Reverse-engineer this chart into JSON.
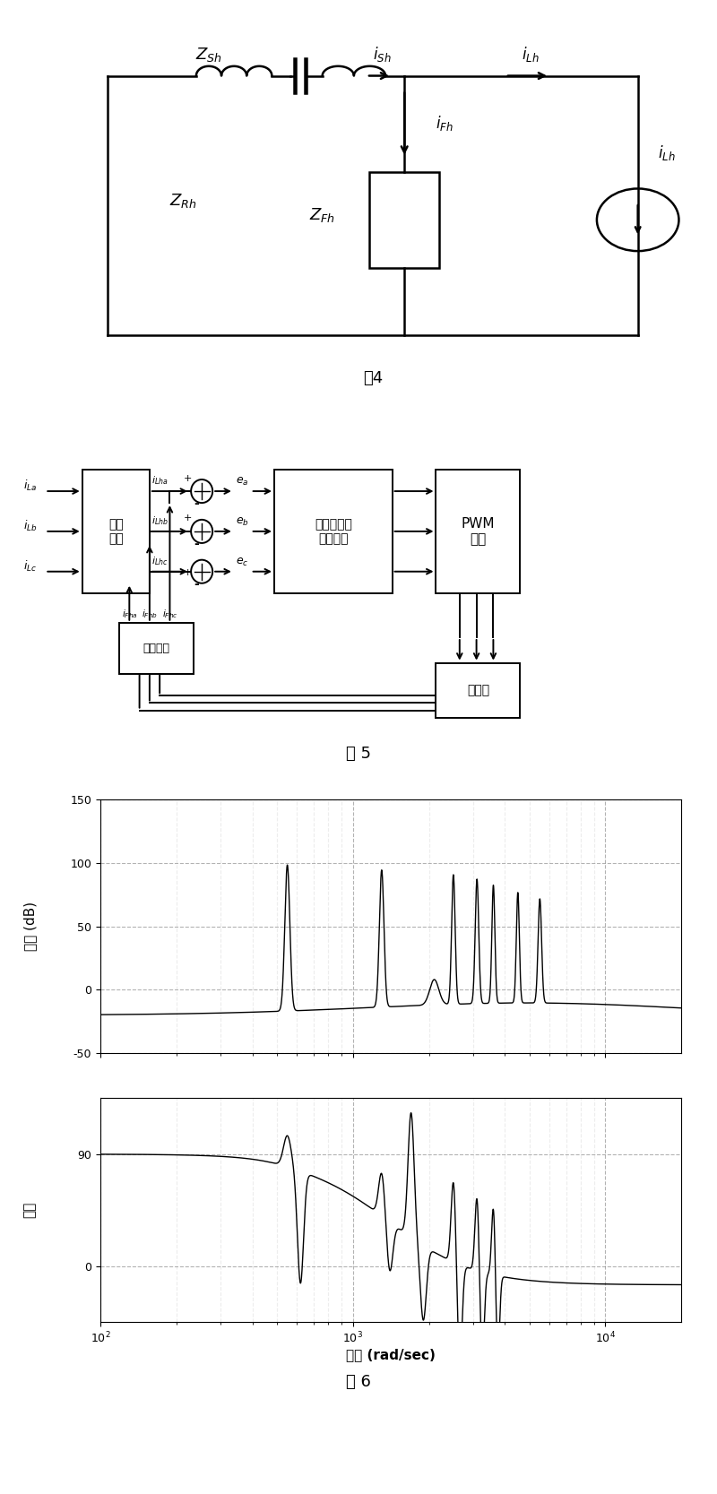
{
  "fig4_label": "图4",
  "fig5_label": "图 5",
  "fig6_label": "图 6",
  "circuit_labels": {
    "Z_Sh": "$Z_{Sh}$",
    "Z_Rh": "$Z_{Rh}$",
    "Z_Fh": "$Z_{Fh}$",
    "i_Sh": "$i_{Sh}$",
    "i_Lh_top": "$i_{Lh}$",
    "i_Fh": "$i_{Fh}$",
    "i_Lh_side": "$i_{Lh}$"
  },
  "block_labels": {
    "harmonic_detect1": "谐波\n检测",
    "harmonic_detect2": "谐波检测",
    "specific_control": "特定次谐波\n补偿控制",
    "pwm": "PWM\n调制",
    "inverter": "逆变器"
  },
  "signal_labels": {
    "i_La": "$i_{La}$",
    "i_Lb": "$i_{Lb}$",
    "i_Lc": "$i_{Lc}$",
    "i_Lha": "$i_{Lha}$",
    "i_Lhb": "$i_{Lhb}$",
    "i_Lhc": "$i_{Lhc}$",
    "i_Fha": "$i_{Fha}$",
    "i_Fhb": "$i_{Fhb}$",
    "i_Fhc": "$i_{Fhc}$",
    "e_a": "$e_a$",
    "e_b": "$e_b$",
    "e_c": "$e_c$"
  },
  "bode_magnitude_ylabel": "幅値 (dB)",
  "bode_phase_ylabel": "相角",
  "bode_xlabel": "频率 (rad/sec)",
  "bode_mag_ylim": [
    -50,
    150
  ],
  "bode_phase_ylim": [
    -45,
    135
  ],
  "bode_xlim_log": [
    2,
    4.3
  ],
  "background_color": "#ffffff"
}
